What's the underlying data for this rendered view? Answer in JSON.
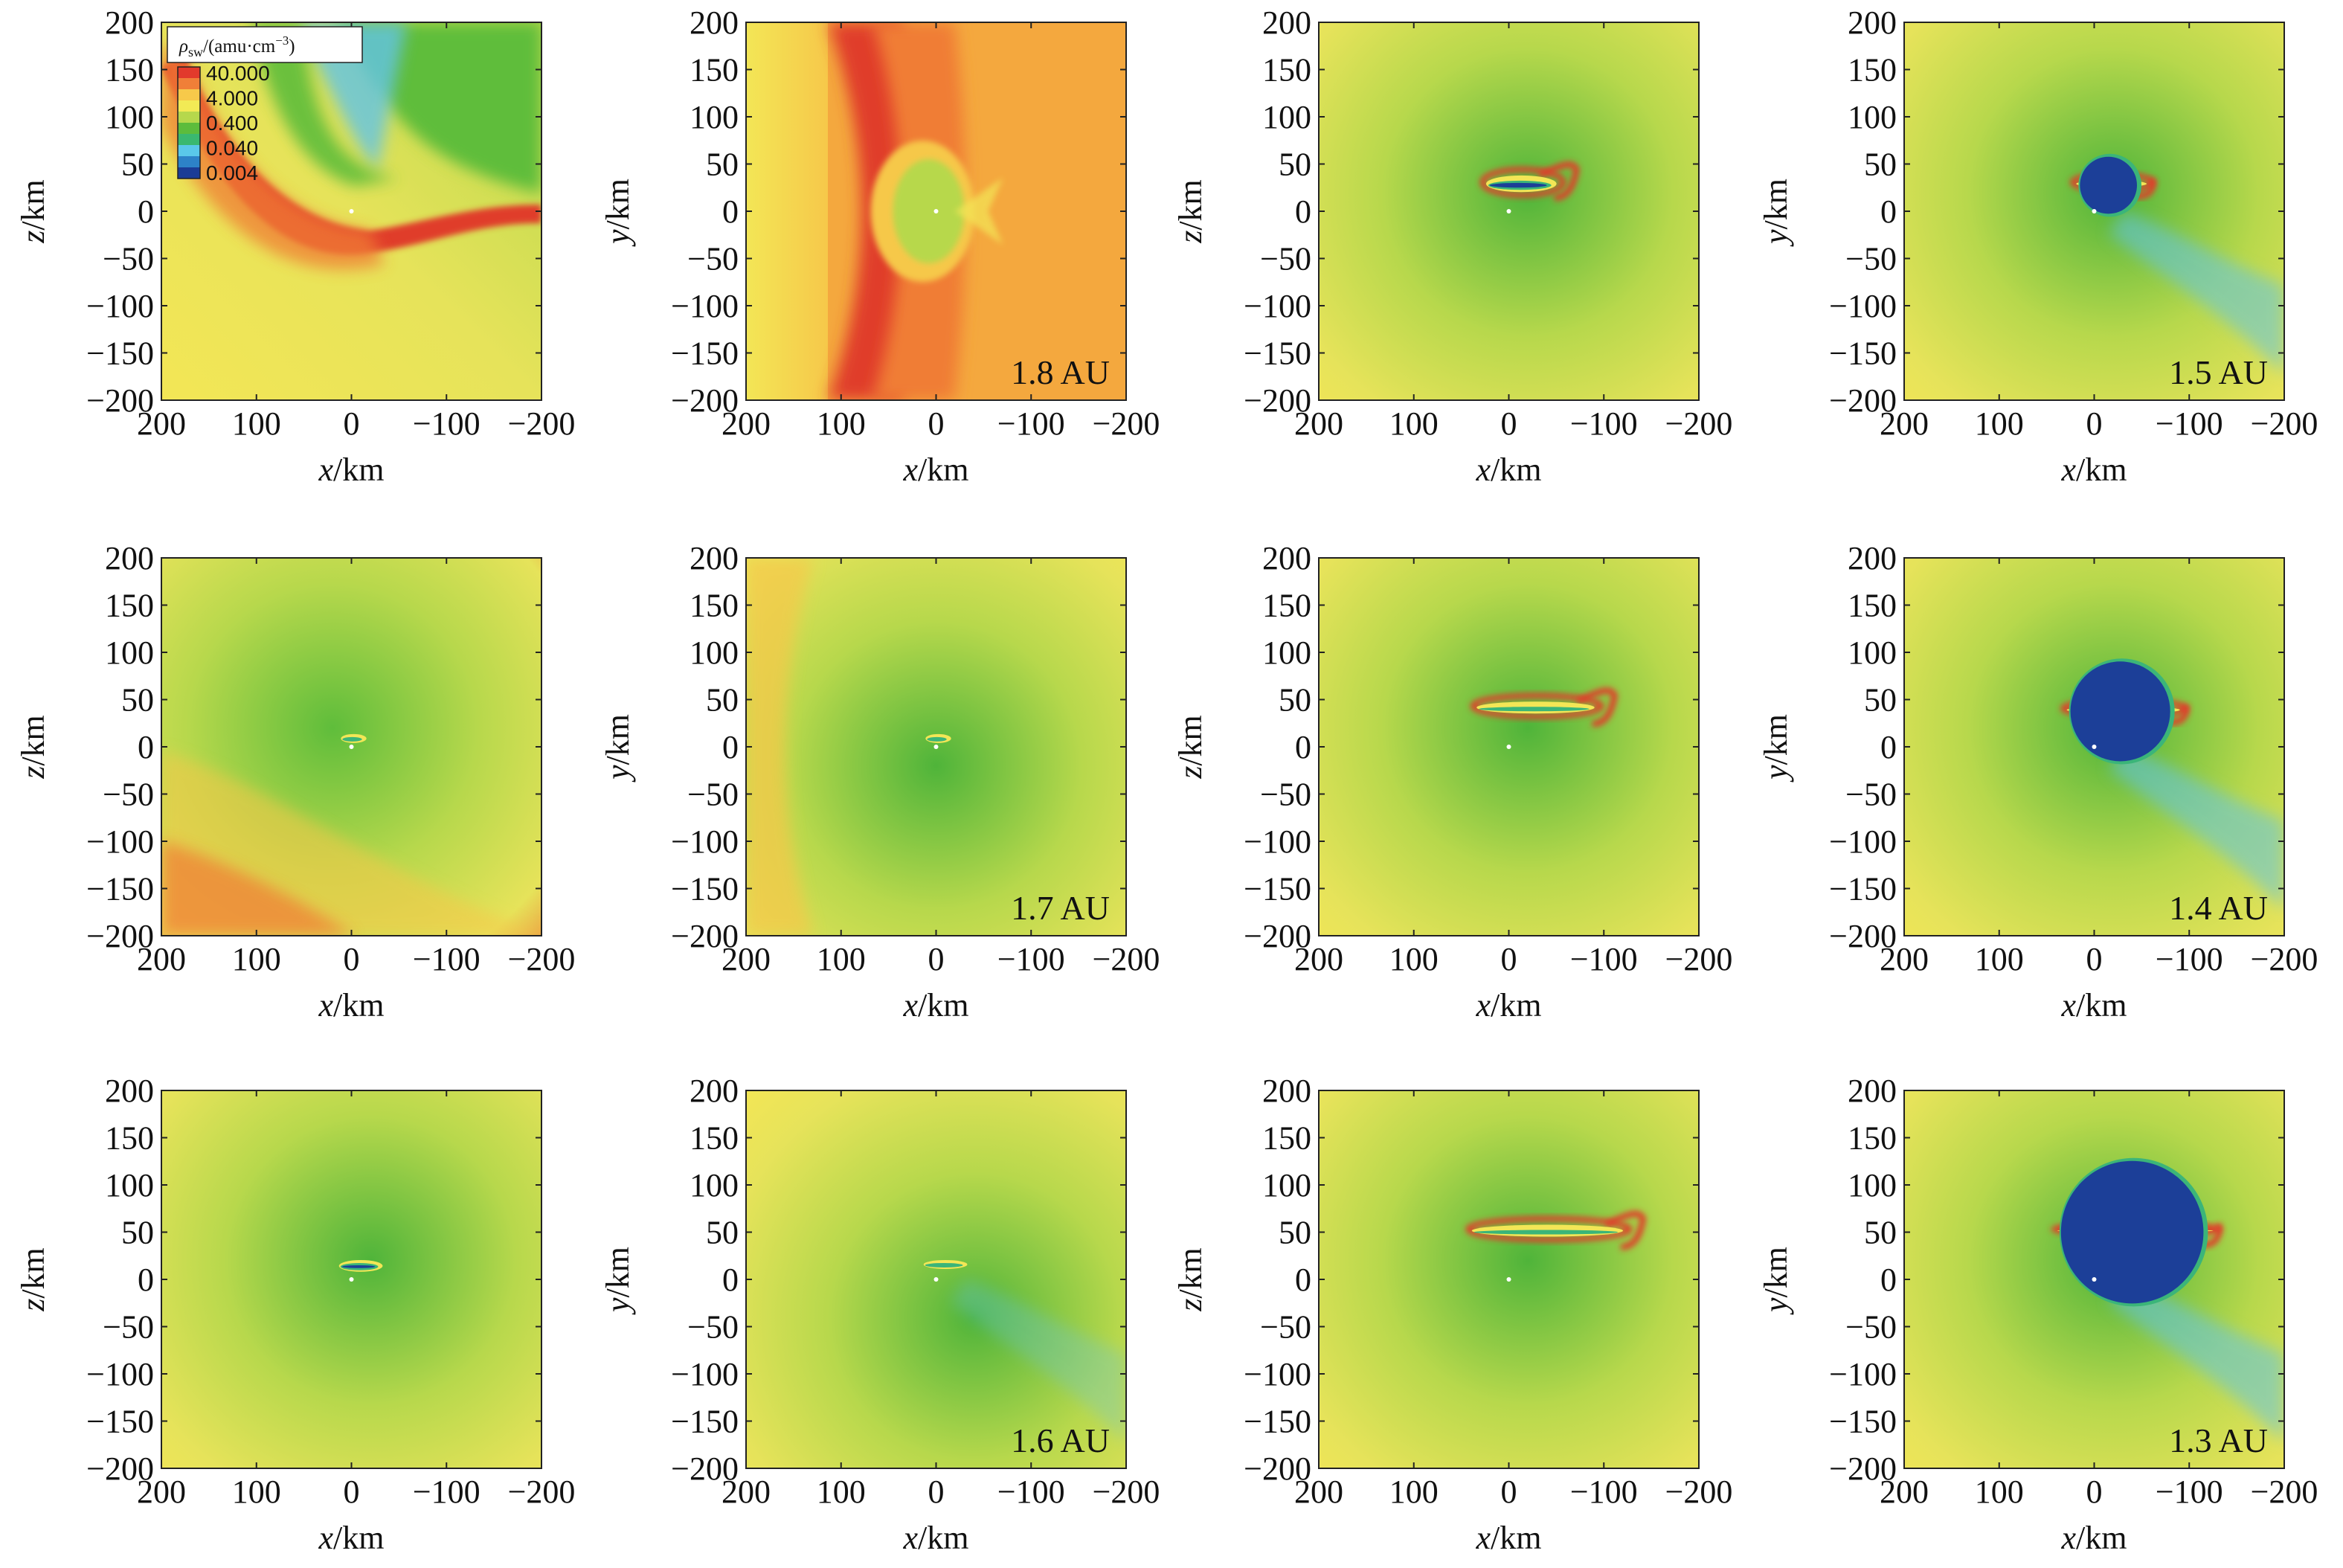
{
  "figure": {
    "colorbar": {
      "title": "ρsw/(amu·cm⁻³)",
      "title_symbol": "ρ",
      "title_subscript": "sw",
      "title_rest": "/(amu·cm",
      "title_exp": "−3",
      "title_close": ")",
      "labels": [
        "40.000",
        "4.000",
        "0.400",
        "0.040",
        "0.004"
      ],
      "colors": [
        "#e23a2c",
        "#f07f38",
        "#f7c94a",
        "#f2ea55",
        "#b6d84c",
        "#5cbc3c",
        "#3ab870",
        "#5ac8ea",
        "#2d82c8",
        "#1b3c96"
      ]
    },
    "axes": {
      "xlabel_var": "x",
      "xlabel_unit": "/km",
      "zlabel_var": "z",
      "ylabel_var": "y",
      "vlabel_unit": "/km",
      "xticks": [
        "200",
        "100",
        "0",
        "−100",
        "−200"
      ],
      "yticks": [
        "200",
        "150",
        "100",
        "50",
        "0",
        "−50",
        "−100",
        "−150",
        "−200"
      ]
    },
    "au_labels": [
      "1.8 AU",
      "1.5 AU",
      "1.7 AU",
      "1.4 AU",
      "1.6 AU",
      "1.3 AU"
    ]
  },
  "chart_data": {
    "type": "heatmap",
    "quantity": "ρsw",
    "unit": "amu·cm⁻³",
    "scale": "log",
    "color_range": [
      0.004,
      40.0
    ],
    "xlim": [
      200,
      -200
    ],
    "ylim": [
      -200,
      200
    ],
    "x_label": "x/km",
    "panels": [
      {
        "row": 1,
        "col": 1,
        "plane": "x-z",
        "vlabel": "z/km",
        "au": "",
        "has_colorbar": true,
        "style": "bowshock-xz"
      },
      {
        "row": 1,
        "col": 2,
        "plane": "x-y",
        "vlabel": "y/km",
        "au": "1.8 AU",
        "style": "bowshock-xy"
      },
      {
        "row": 1,
        "col": 3,
        "plane": "x-z",
        "vlabel": "z/km",
        "au": "",
        "cavity_extent_km": [
          20,
          -40,
          30,
          -25
        ],
        "style": "cavity-z"
      },
      {
        "row": 1,
        "col": 4,
        "plane": "x-y",
        "vlabel": "y/km",
        "au": "1.5 AU",
        "cavity_extent_km": [
          15,
          -45,
          25,
          -30
        ],
        "style": "cavity-y"
      },
      {
        "row": 2,
        "col": 1,
        "plane": "x-z",
        "vlabel": "z/km",
        "au": "",
        "cavity_extent_km": [
          8,
          -8,
          8,
          -8
        ],
        "style": "small"
      },
      {
        "row": 2,
        "col": 2,
        "plane": "x-y",
        "vlabel": "y/km",
        "au": "1.7 AU",
        "cavity_extent_km": [
          8,
          -8,
          8,
          -8
        ],
        "style": "small-y"
      },
      {
        "row": 2,
        "col": 3,
        "plane": "x-z",
        "vlabel": "z/km",
        "au": "",
        "cavity_extent_km": [
          30,
          -80,
          40,
          -40
        ],
        "style": "cavity-z"
      },
      {
        "row": 2,
        "col": 4,
        "plane": "x-y",
        "vlabel": "y/km",
        "au": "1.4 AU",
        "cavity_extent_km": [
          25,
          -80,
          35,
          -40
        ],
        "style": "cavity-y"
      },
      {
        "row": 3,
        "col": 1,
        "plane": "x-z",
        "vlabel": "z/km",
        "au": "",
        "cavity_extent_km": [
          10,
          -25,
          15,
          -12
        ],
        "style": "medium"
      },
      {
        "row": 3,
        "col": 2,
        "plane": "x-y",
        "vlabel": "y/km",
        "au": "1.6 AU",
        "cavity_extent_km": [
          10,
          -25,
          15,
          -15
        ],
        "style": "medium-y"
      },
      {
        "row": 3,
        "col": 3,
        "plane": "x-z",
        "vlabel": "z/km",
        "au": "",
        "cavity_extent_km": [
          35,
          -110,
          50,
          -50
        ],
        "style": "cavity-z"
      },
      {
        "row": 3,
        "col": 4,
        "plane": "x-y",
        "vlabel": "y/km",
        "au": "1.3 AU",
        "cavity_extent_km": [
          35,
          -115,
          45,
          -55
        ],
        "style": "cavity-y"
      }
    ]
  }
}
